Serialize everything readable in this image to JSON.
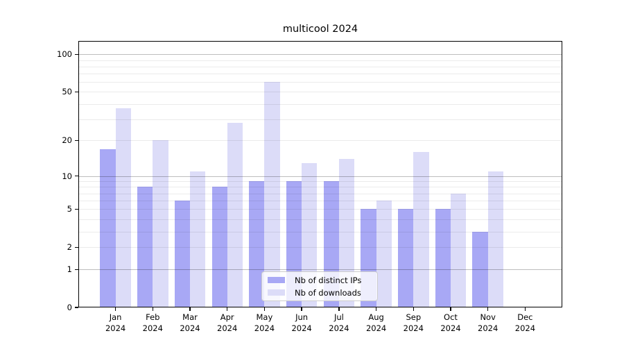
{
  "title": "multicool 2024",
  "chart_data": {
    "type": "bar",
    "title": "multicool 2024",
    "categories": [
      "Jan 2024",
      "Feb 2024",
      "Mar 2024",
      "Apr 2024",
      "May 2024",
      "Jun 2024",
      "Jul 2024",
      "Aug 2024",
      "Sep 2024",
      "Oct 2024",
      "Nov 2024",
      "Dec 2024"
    ],
    "series": [
      {
        "name": "Nb of distinct IPs",
        "color": "#a8a8f5",
        "values": [
          17,
          8,
          6,
          8,
          9,
          9,
          9,
          5,
          5,
          5,
          3,
          0
        ]
      },
      {
        "name": "Nb of downloads",
        "color": "#dcdcf8",
        "values": [
          37,
          20,
          11,
          28,
          60,
          13,
          14,
          6,
          16,
          7,
          11,
          0
        ]
      }
    ],
    "xlabel": "",
    "ylabel": "",
    "yscale": "log1p",
    "ylim": [
      0,
      128
    ],
    "yticks": [
      0,
      1,
      2,
      5,
      10,
      20,
      50,
      100
    ],
    "ytick_labels": [
      "0",
      "1",
      "2",
      "5",
      "10",
      "20",
      "50",
      "100"
    ],
    "major_gridlines": [
      1,
      10,
      100
    ],
    "minor_gridlines": [
      2,
      3,
      4,
      5,
      6,
      7,
      8,
      9,
      20,
      30,
      40,
      50,
      60,
      70,
      80,
      90
    ],
    "grid": true,
    "legend": {
      "position": "bottom-center",
      "entries": [
        "Nb of distinct IPs",
        "Nb of downloads"
      ]
    }
  },
  "colors": {
    "background": "#ffffff",
    "spine": "#000000",
    "text": "#000000",
    "bar_distinct_ips": "#a8a8f5",
    "bar_downloads": "#dcdcf8",
    "legend_border": "#cccccc",
    "legend_background": "rgba(255,255,255,0.8)"
  }
}
